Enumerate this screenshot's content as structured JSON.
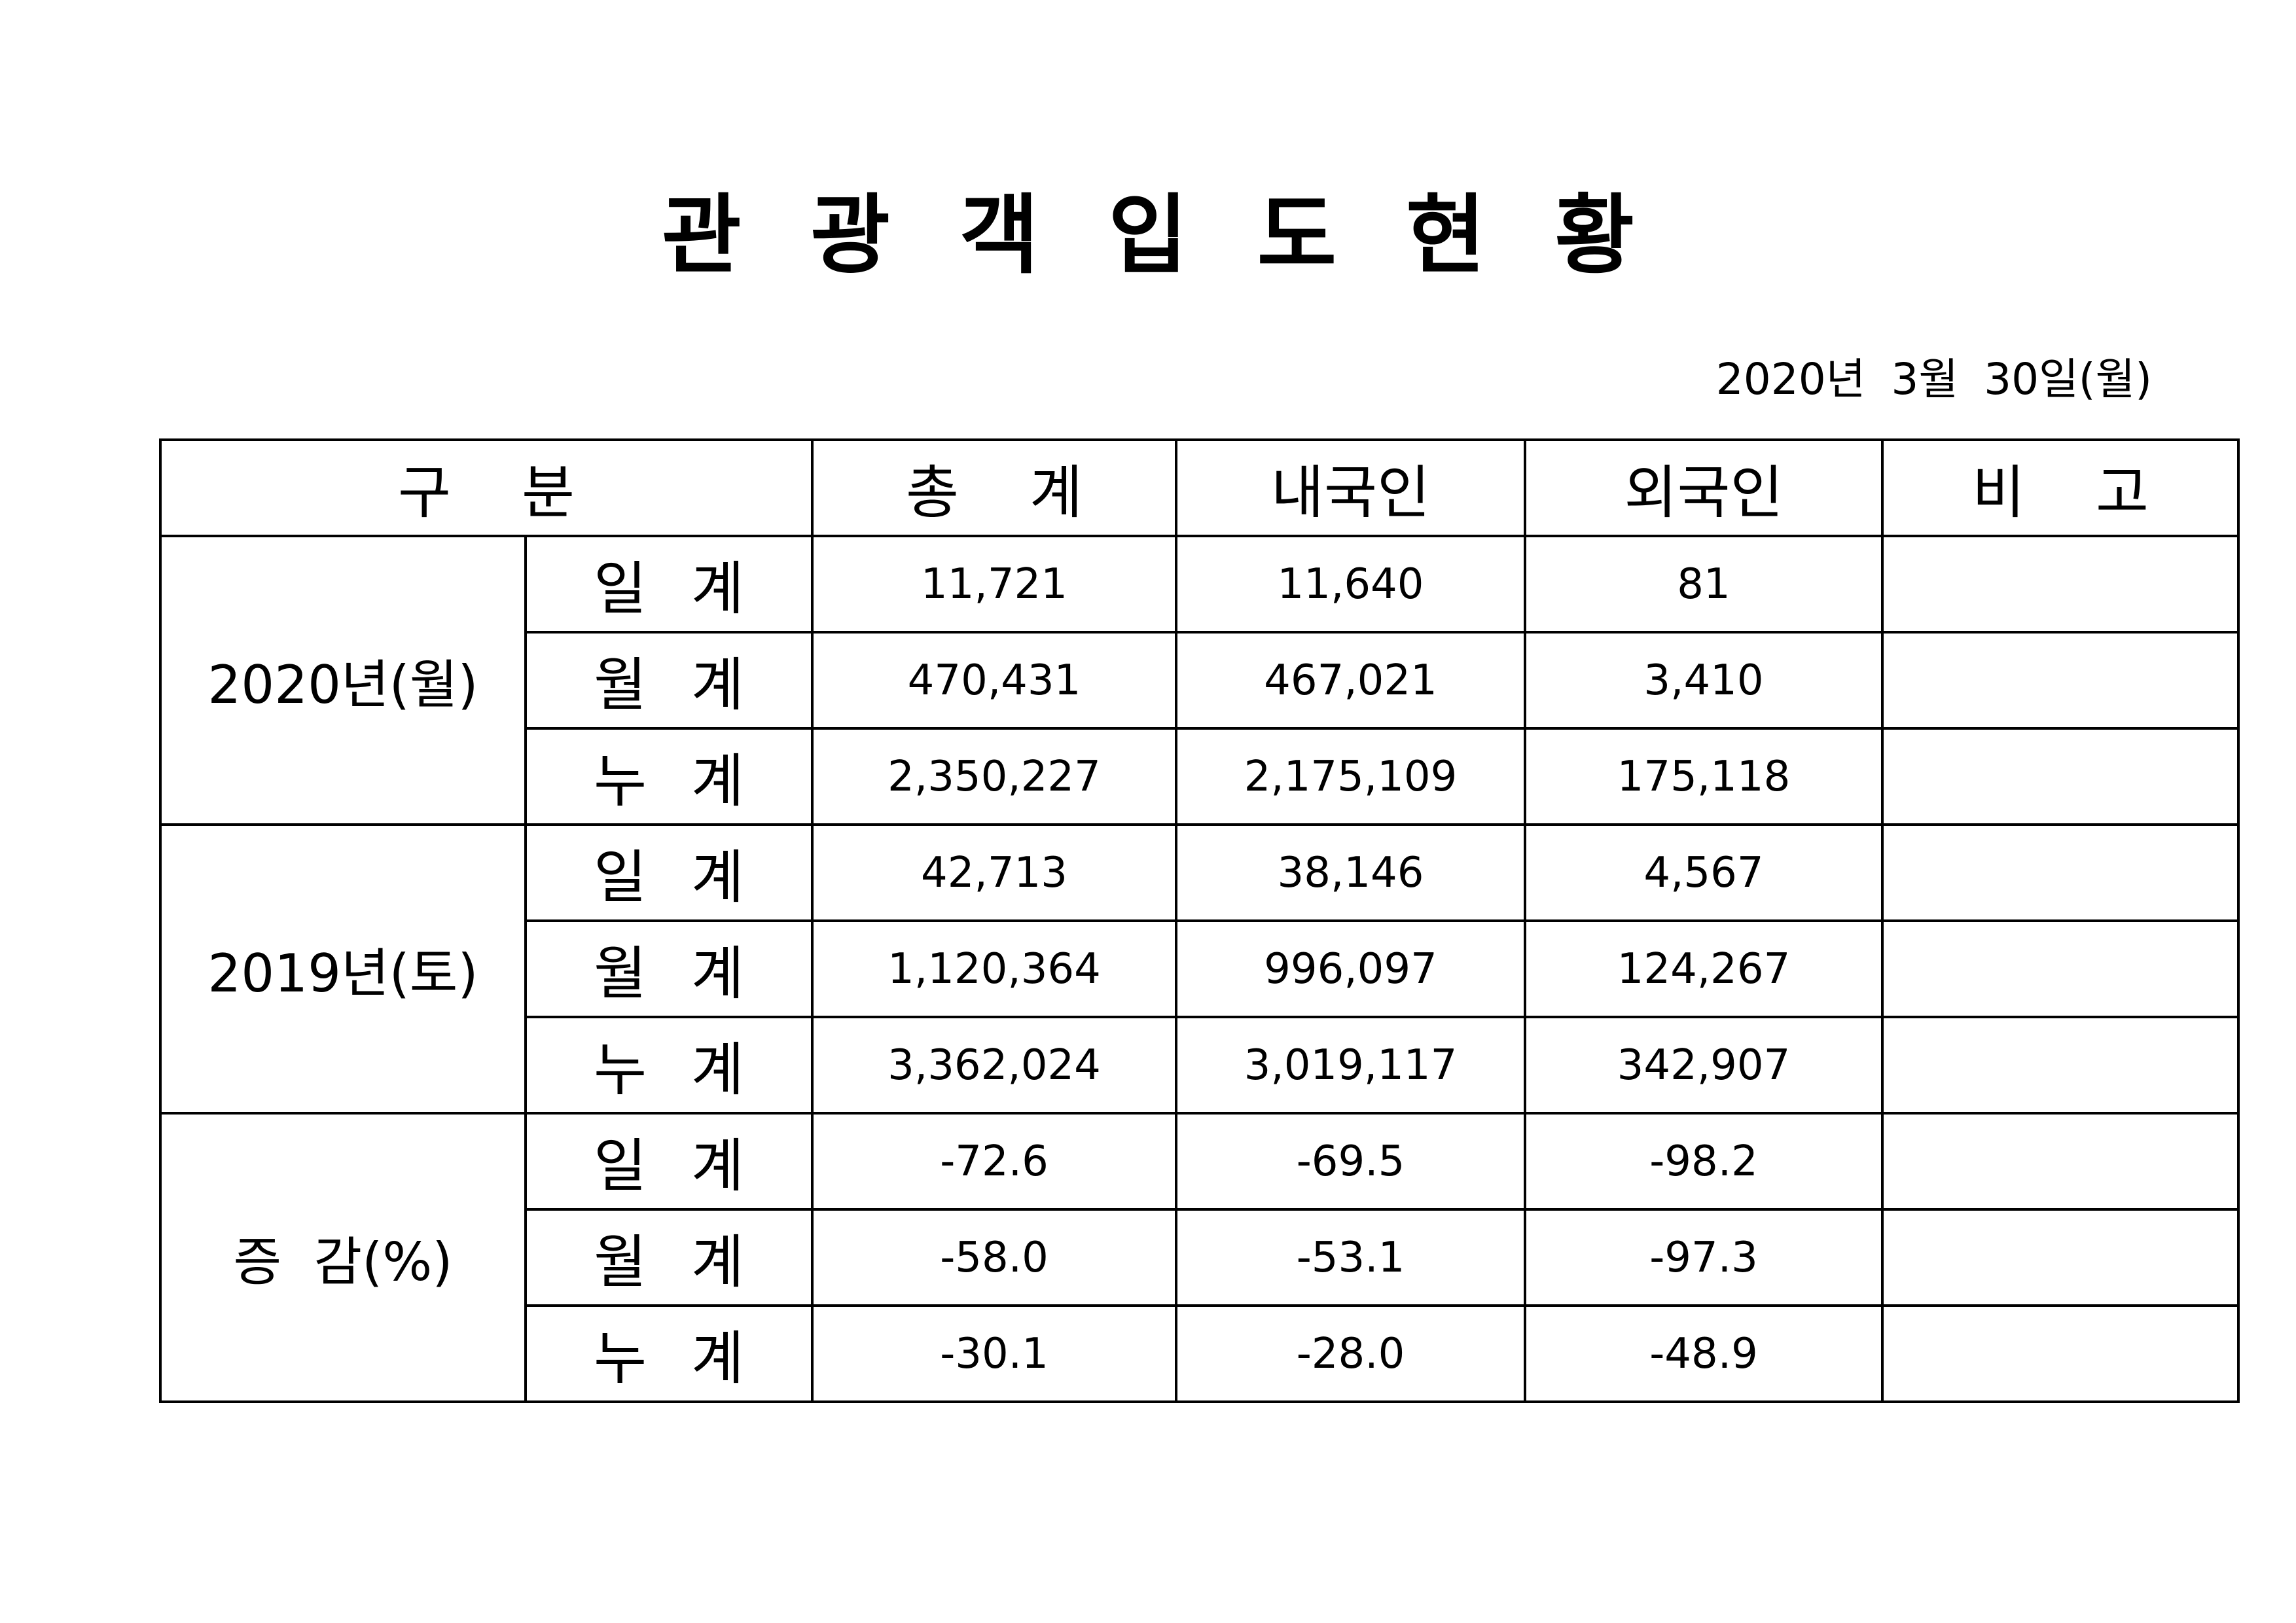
{
  "header": {
    "title": "관 광 객 입 도 현 황",
    "date": "2020년 3월 30일(월)"
  },
  "table": {
    "columns": [
      "구 분",
      "총 계",
      "내국인",
      "외국인",
      "비 고"
    ],
    "groups": [
      {
        "label": "2020년(월)",
        "rows": [
          {
            "label": "일 계",
            "values": [
              "11,721",
              "11,640",
              "81"
            ]
          },
          {
            "label": "월 계",
            "values": [
              "470,431",
              "467,021",
              "3,410"
            ]
          },
          {
            "label": "누 계",
            "values": [
              "2,350,227",
              "2,175,109",
              "175,118"
            ]
          }
        ]
      },
      {
        "label": "2019년(토)",
        "rows": [
          {
            "label": "일 계",
            "values": [
              "42,713",
              "38,146",
              "4,567"
            ]
          },
          {
            "label": "월 계",
            "values": [
              "1,120,364",
              "996,097",
              "124,267"
            ]
          },
          {
            "label": "누 계",
            "values": [
              "3,362,024",
              "3,019,117",
              "342,907"
            ]
          }
        ]
      },
      {
        "label": "증 감(%)",
        "rows": [
          {
            "label": "일 계",
            "values": [
              "-72.6",
              "-69.5",
              "-98.2"
            ]
          },
          {
            "label": "월 계",
            "values": [
              "-58.0",
              "-53.1",
              "-97.3"
            ]
          },
          {
            "label": "누 계",
            "values": [
              "-30.1",
              "-28.0",
              "-48.9"
            ]
          }
        ]
      }
    ]
  }
}
